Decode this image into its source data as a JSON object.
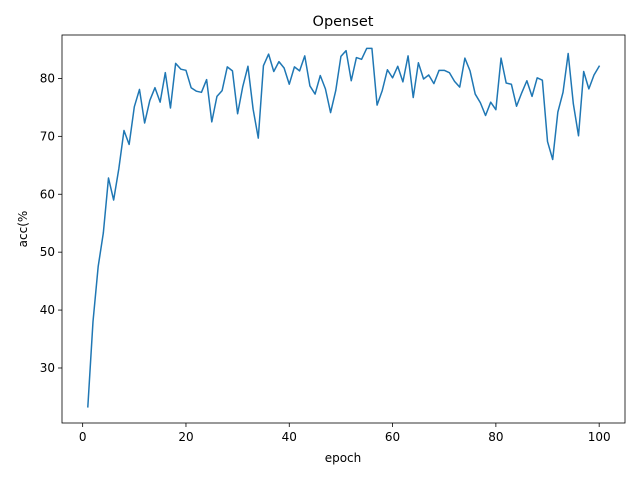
{
  "chart_data": {
    "type": "line",
    "title": "Openset",
    "xlabel": "epoch",
    "ylabel": "acc(%",
    "xlim": [
      -4,
      105
    ],
    "ylim": [
      20.5,
      87.5
    ],
    "xticks": [
      0,
      20,
      40,
      60,
      80,
      100
    ],
    "yticks": [
      30,
      40,
      50,
      60,
      70,
      80
    ],
    "grid": false,
    "series": [
      {
        "color": "#1f77b4",
        "x": [
          1,
          2,
          3,
          4,
          5,
          6,
          7,
          8,
          9,
          10,
          11,
          12,
          13,
          14,
          15,
          16,
          17,
          18,
          19,
          20,
          21,
          22,
          23,
          24,
          25,
          26,
          27,
          28,
          29,
          30,
          31,
          32,
          33,
          34,
          35,
          36,
          37,
          38,
          39,
          40,
          41,
          42,
          43,
          44,
          45,
          46,
          47,
          48,
          49,
          50,
          51,
          52,
          53,
          54,
          55,
          56,
          57,
          58,
          59,
          60,
          61,
          62,
          63,
          64,
          65,
          66,
          67,
          68,
          69,
          70,
          71,
          72,
          73,
          74,
          75,
          76,
          77,
          78,
          79,
          80,
          81,
          82,
          83,
          84,
          85,
          86,
          87,
          88,
          89,
          90,
          91,
          92,
          93,
          94,
          95,
          96,
          97,
          98,
          99,
          100
        ],
        "y": [
          23.3,
          38.0,
          47.5,
          53.3,
          62.8,
          59.0,
          64.4,
          71.0,
          68.6,
          75.1,
          78.1,
          72.3,
          76.2,
          78.4,
          75.9,
          81.0,
          74.9,
          82.6,
          81.6,
          81.4,
          78.4,
          77.8,
          77.6,
          79.8,
          72.5,
          76.9,
          77.9,
          82.0,
          81.3,
          73.9,
          78.6,
          82.1,
          74.7,
          69.7,
          82.2,
          84.2,
          81.2,
          82.9,
          81.8,
          79.0,
          82.0,
          81.3,
          83.9,
          78.7,
          77.3,
          80.5,
          78.2,
          74.1,
          77.9,
          83.8,
          84.8,
          79.6,
          83.6,
          83.3,
          85.2,
          85.2,
          75.4,
          77.9,
          81.5,
          80.1,
          82.1,
          79.4,
          83.9,
          76.7,
          82.7,
          79.9,
          80.6,
          79.1,
          81.4,
          81.4,
          81.0,
          79.5,
          78.5,
          83.5,
          81.3,
          77.3,
          75.8,
          73.6,
          75.9,
          74.6,
          83.5,
          79.2,
          79.0,
          75.2,
          77.5,
          79.6,
          76.9,
          80.1,
          79.7,
          69.1,
          66.0,
          74.2,
          77.6,
          84.3,
          75.6,
          70.1,
          81.2,
          78.2,
          80.6,
          82.1
        ]
      }
    ]
  }
}
